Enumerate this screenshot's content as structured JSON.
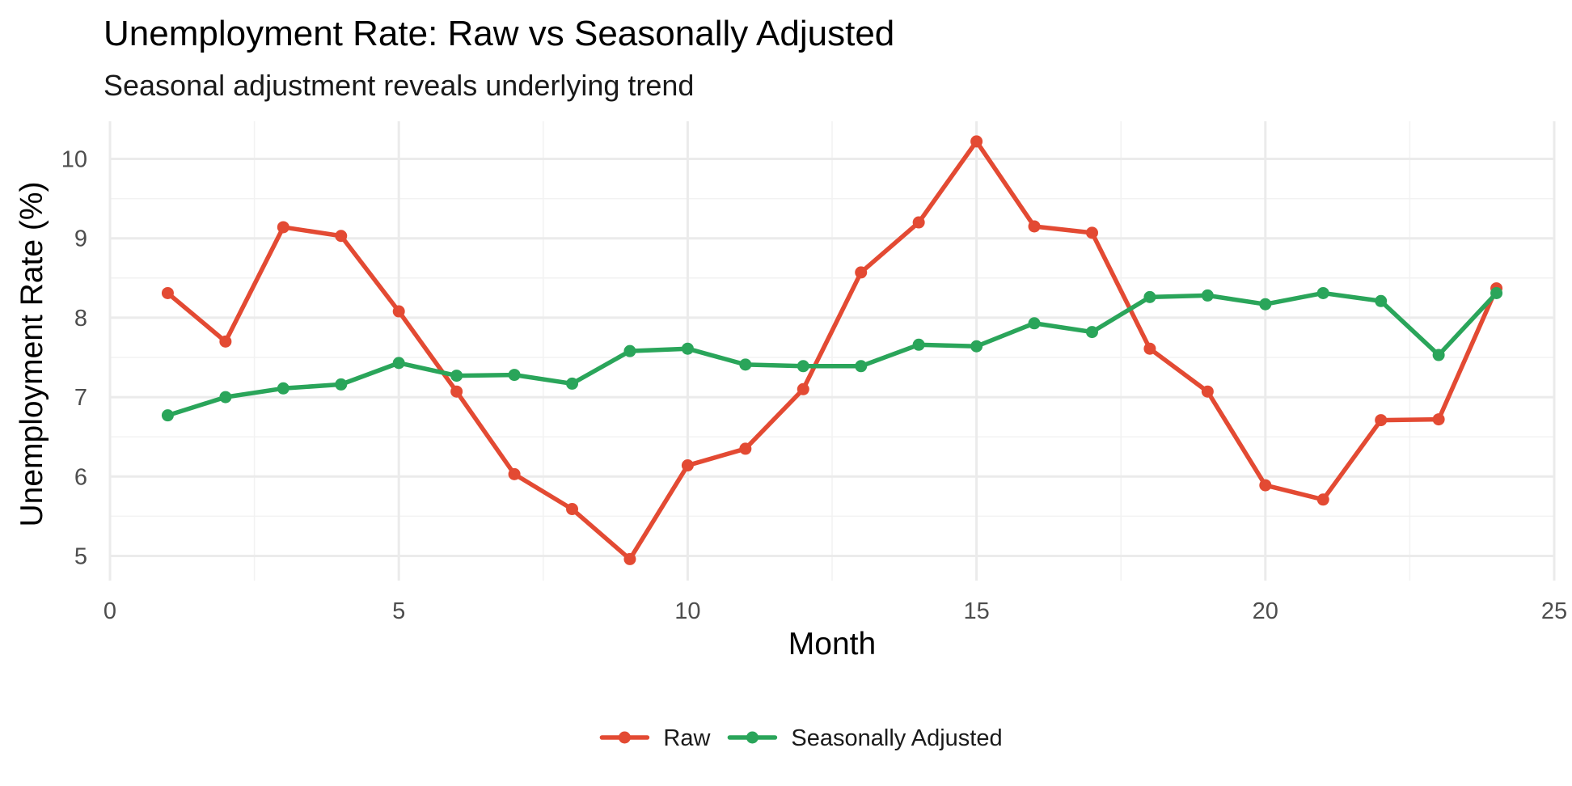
{
  "chart_data": {
    "type": "line",
    "title": "Unemployment Rate: Raw vs Seasonally Adjusted",
    "subtitle": "Seasonal adjustment reveals underlying trend",
    "xlabel": "Month",
    "ylabel": "Unemployment Rate (%)",
    "xlim": [
      0,
      25
    ],
    "ylim": [
      4.75,
      10.5
    ],
    "x_ticks": [
      0,
      5,
      10,
      15,
      20,
      25
    ],
    "y_ticks": [
      5,
      6,
      7,
      8,
      9,
      10
    ],
    "grid": true,
    "legend_position": "bottom",
    "x": [
      1,
      2,
      3,
      4,
      5,
      6,
      7,
      8,
      9,
      10,
      11,
      12,
      13,
      14,
      15,
      16,
      17,
      18,
      19,
      20,
      21,
      22,
      23,
      24
    ],
    "series": [
      {
        "name": "Raw",
        "color": "#e34a33",
        "values": [
          8.31,
          7.7,
          9.14,
          9.03,
          8.08,
          7.07,
          6.03,
          5.59,
          4.96,
          6.14,
          6.35,
          7.1,
          8.57,
          9.2,
          10.22,
          9.15,
          9.07,
          7.61,
          7.07,
          5.89,
          5.71,
          6.71,
          6.72,
          8.37
        ]
      },
      {
        "name": "Seasonally Adjusted",
        "color": "#2aa55a",
        "values": [
          6.77,
          7.0,
          7.11,
          7.16,
          7.43,
          7.27,
          7.28,
          7.17,
          7.58,
          7.61,
          7.41,
          7.39,
          7.39,
          7.66,
          7.64,
          7.93,
          7.82,
          8.26,
          8.28,
          8.17,
          8.31,
          8.21,
          7.53,
          8.31
        ]
      }
    ]
  }
}
